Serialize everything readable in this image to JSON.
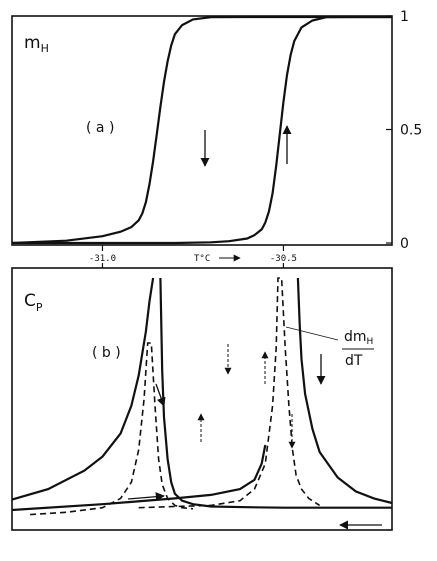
{
  "chart_data": [
    {
      "type": "line",
      "panel_label": "( a )",
      "ylabel_main": "m",
      "ylabel_sub": "H",
      "ylim": [
        0,
        1
      ],
      "y_ticks": [
        {
          "value": 1,
          "label": "1"
        },
        {
          "value": 0.5,
          "label": "0.5"
        },
        {
          "value": 0,
          "label": "0"
        }
      ],
      "xlim": [
        -31.25,
        -30.2
      ],
      "grid": false,
      "series": [
        {
          "direction": "cooling",
          "x": [
            -31.25,
            -31.1,
            -31.0,
            -30.95,
            -30.92,
            -30.9,
            -30.89,
            -30.88,
            -30.87,
            -30.86,
            -30.85,
            -30.84,
            -30.83,
            -30.82,
            -30.81,
            -30.8,
            -30.78,
            -30.75,
            -30.7,
            -30.6,
            -30.5,
            -30.4,
            -30.2
          ],
          "y": [
            0.0,
            0.01,
            0.03,
            0.05,
            0.07,
            0.1,
            0.13,
            0.18,
            0.26,
            0.36,
            0.48,
            0.6,
            0.71,
            0.8,
            0.87,
            0.92,
            0.96,
            0.985,
            0.995,
            1.0,
            1.0,
            1.0,
            1.0
          ]
        },
        {
          "direction": "heating",
          "x": [
            -31.25,
            -31.0,
            -30.8,
            -30.7,
            -30.65,
            -30.6,
            -30.58,
            -30.56,
            -30.55,
            -30.54,
            -30.53,
            -30.52,
            -30.51,
            -30.5,
            -30.49,
            -30.48,
            -30.47,
            -30.45,
            -30.42,
            -30.38,
            -30.3,
            -30.2
          ],
          "y": [
            0.0,
            0.0,
            0.0,
            0.003,
            0.008,
            0.02,
            0.035,
            0.06,
            0.09,
            0.14,
            0.22,
            0.34,
            0.48,
            0.62,
            0.74,
            0.83,
            0.89,
            0.95,
            0.98,
            0.995,
            1.0,
            1.0
          ]
        }
      ],
      "arrows": [
        {
          "series": "cooling",
          "direction": "down"
        },
        {
          "series": "heating",
          "direction": "up"
        }
      ]
    },
    {
      "type": "line",
      "panel_label": "( b )",
      "ylabel_main": "C",
      "ylabel_sub": "P",
      "x_ticks": [
        {
          "value": -31.0,
          "label": "-31.0"
        },
        {
          "value": -30.5,
          "label": "-30.5"
        }
      ],
      "xlabel": "T°C",
      "xlim": [
        -31.25,
        -30.2
      ],
      "ylim": [
        0,
        1
      ],
      "grid": false,
      "legend": {
        "label_top": "dm",
        "label_top_sub": "H",
        "label_bottom": "dT",
        "points_to": "dashed curves"
      },
      "series": [
        {
          "style": "solid",
          "direction": "cooling",
          "x": [
            -31.25,
            -31.15,
            -31.05,
            -31.0,
            -30.95,
            -30.92,
            -30.9,
            -30.88,
            -30.87,
            -30.86
          ],
          "y": [
            0.045,
            0.09,
            0.17,
            0.23,
            0.33,
            0.45,
            0.58,
            0.77,
            0.9,
            1.0
          ]
        },
        {
          "style": "solid",
          "direction": "cooling",
          "x": [
            -30.84,
            -30.835,
            -30.83,
            -30.82,
            -30.81,
            -30.8,
            -30.78,
            -30.75,
            -30.7,
            -30.6,
            -30.5,
            -30.3,
            -30.2
          ],
          "y": [
            1.0,
            0.6,
            0.4,
            0.22,
            0.12,
            0.07,
            0.04,
            0.025,
            0.015,
            0.012,
            0.01,
            0.01,
            0.01
          ]
        },
        {
          "style": "solid",
          "direction": "heating",
          "x": [
            -31.25,
            -31.0,
            -30.8,
            -30.7,
            -30.62,
            -30.58,
            -30.56,
            -30.55
          ],
          "y": [
            0.0,
            0.025,
            0.05,
            0.065,
            0.09,
            0.13,
            0.2,
            0.28
          ]
        },
        {
          "style": "solid",
          "direction": "heating",
          "x": [
            -30.46,
            -30.455,
            -30.45,
            -30.44,
            -30.42,
            -30.4,
            -30.35,
            -30.3,
            -30.25,
            -30.2
          ],
          "y": [
            1.0,
            0.8,
            0.65,
            0.5,
            0.35,
            0.25,
            0.14,
            0.08,
            0.05,
            0.03
          ]
        },
        {
          "style": "dashed",
          "direction": "cooling",
          "x": [
            -31.2,
            -31.1,
            -31.0,
            -30.95,
            -30.92,
            -30.9,
            -30.885,
            -30.875,
            -30.865,
            -30.855,
            -30.845,
            -30.835,
            -30.82,
            -30.8,
            -30.78,
            -30.75
          ],
          "y": [
            -0.02,
            -0.01,
            0.01,
            0.05,
            0.12,
            0.26,
            0.48,
            0.72,
            0.72,
            0.45,
            0.22,
            0.11,
            0.05,
            0.02,
            0.01,
            0.005
          ]
        },
        {
          "style": "dashed",
          "direction": "heating",
          "x": [
            -30.9,
            -30.8,
            -30.7,
            -30.62,
            -30.58,
            -30.55,
            -30.53,
            -30.52,
            -30.515,
            -30.505,
            -30.495,
            -30.485,
            -30.475,
            -30.465,
            -30.45,
            -30.43,
            -30.4
          ],
          "y": [
            0.01,
            0.015,
            0.02,
            0.04,
            0.09,
            0.2,
            0.45,
            0.7,
            1.0,
            1.0,
            0.7,
            0.45,
            0.26,
            0.15,
            0.09,
            0.05,
            0.02
          ]
        }
      ],
      "arrows": [
        {
          "near": "cooling solid",
          "direction": "down"
        },
        {
          "near": "cooling solid",
          "direction": "down"
        },
        {
          "near": "heating solid",
          "direction": "right"
        },
        {
          "near": "heating solid",
          "direction": "left"
        },
        {
          "near": "dashed",
          "direction": "up"
        },
        {
          "near": "dashed",
          "direction": "down"
        },
        {
          "near": "dashed",
          "direction": "up"
        },
        {
          "near": "dashed",
          "direction": "down"
        }
      ]
    }
  ]
}
